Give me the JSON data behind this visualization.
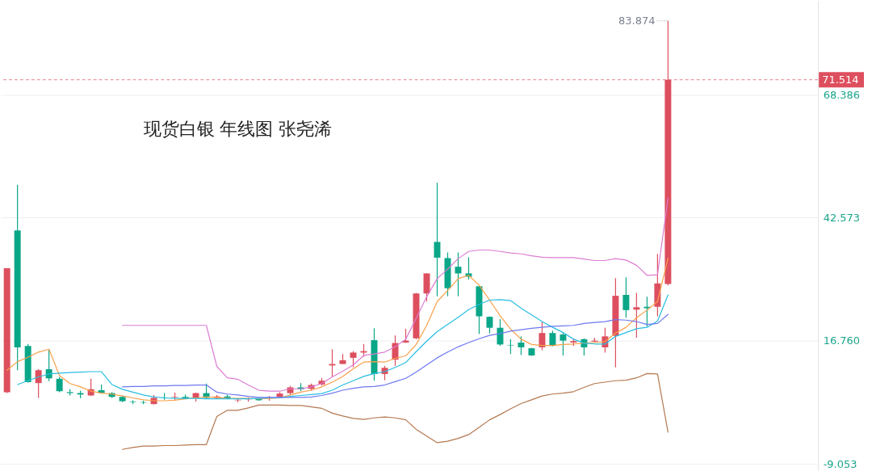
{
  "chart_data": {
    "type": "candlestick",
    "title": "现货白银 年线图 张尧浠",
    "categories": [
      null,
      null,
      null,
      null,
      null,
      null,
      null,
      null,
      null,
      null,
      null,
      null,
      null,
      null,
      null,
      null,
      null,
      null,
      null,
      null,
      null,
      null,
      null,
      null,
      null,
      null,
      null,
      null,
      null,
      null,
      null,
      null,
      null,
      null,
      null,
      null,
      null,
      null,
      null,
      null,
      null,
      null,
      null,
      null,
      null,
      null,
      null,
      null,
      null,
      null,
      null,
      null,
      null,
      null,
      null,
      null,
      null,
      null,
      null,
      null,
      null,
      null,
      null,
      null
    ],
    "ohlc": [
      [
        6.0,
        32.0,
        5.8,
        32.0
      ],
      [
        39.9,
        49.5,
        10.6,
        15.4
      ],
      [
        15.7,
        16.1,
        8.0,
        8.1
      ],
      [
        7.9,
        10.8,
        4.8,
        10.6
      ],
      [
        10.8,
        14.9,
        8.3,
        8.9
      ],
      [
        8.8,
        9.2,
        6.0,
        6.2
      ],
      [
        6.0,
        6.6,
        5.3,
        5.8
      ],
      [
        5.8,
        6.3,
        4.7,
        5.5
      ],
      [
        5.3,
        8.8,
        5.2,
        6.6
      ],
      [
        6.4,
        7.6,
        5.7,
        5.8
      ],
      [
        5.8,
        6.0,
        4.8,
        5.0
      ],
      [
        5.0,
        5.2,
        3.9,
        4.1
      ],
      [
        4.0,
        4.3,
        3.5,
        3.9
      ],
      [
        3.9,
        4.2,
        3.5,
        3.8
      ],
      [
        3.5,
        5.4,
        3.4,
        4.8
      ],
      [
        4.9,
        5.8,
        4.4,
        4.8
      ],
      [
        4.9,
        5.9,
        4.4,
        5.0
      ],
      [
        5.0,
        5.5,
        4.5,
        4.6
      ],
      [
        4.8,
        5.9,
        4.0,
        5.8
      ],
      [
        5.8,
        7.8,
        4.7,
        4.8
      ],
      [
        4.8,
        5.4,
        4.7,
        5.1
      ],
      [
        5.1,
        5.5,
        4.5,
        4.6
      ],
      [
        4.3,
        4.7,
        3.9,
        4.4
      ],
      [
        4.5,
        4.9,
        4.0,
        4.6
      ],
      [
        4.6,
        4.8,
        4.2,
        4.3
      ],
      [
        4.7,
        5.2,
        4.2,
        4.9
      ],
      [
        5.0,
        6.0,
        4.8,
        5.7
      ],
      [
        5.8,
        7.3,
        5.4,
        7.0
      ],
      [
        7.0,
        7.9,
        6.2,
        6.6
      ],
      [
        6.7,
        7.8,
        6.3,
        7.5
      ],
      [
        7.6,
        9.0,
        7.4,
        8.4
      ],
      [
        11.6,
        15.0,
        9.2,
        11.9
      ],
      [
        11.9,
        14.0,
        11.9,
        12.7
      ],
      [
        13.2,
        14.6,
        11.2,
        14.3
      ],
      [
        14.3,
        16.1,
        13.4,
        14.6
      ],
      [
        16.9,
        19.4,
        8.4,
        9.8
      ],
      [
        9.8,
        11.5,
        8.5,
        11.1
      ],
      [
        12.8,
        17.9,
        11.5,
        16.3
      ],
      [
        16.4,
        19.3,
        16.3,
        16.8
      ],
      [
        17.3,
        26.8,
        17.1,
        26.7
      ],
      [
        26.7,
        30.9,
        25.0,
        30.9
      ],
      [
        37.5,
        49.9,
        26.1,
        34.2
      ],
      [
        34.1,
        35.3,
        26.1,
        27.8
      ],
      [
        32.3,
        35.3,
        26.1,
        30.9
      ],
      [
        30.9,
        34.3,
        29.6,
        30.2
      ],
      [
        28.2,
        28.2,
        18.2,
        21.9
      ],
      [
        21.8,
        21.9,
        18.3,
        19.5
      ],
      [
        19.5,
        21.3,
        15.7,
        16.0
      ],
      [
        15.9,
        17.1,
        14.0,
        15.8
      ],
      [
        16.4,
        17.7,
        13.8,
        15.4
      ],
      [
        15.2,
        15.3,
        13.6,
        13.7
      ],
      [
        15.4,
        20.8,
        14.8,
        18.4
      ],
      [
        18.4,
        18.9,
        15.6,
        15.7
      ],
      [
        18.1,
        18.4,
        13.7,
        16.8
      ],
      [
        16.4,
        17.2,
        15.7,
        16.7
      ],
      [
        17.1,
        17.3,
        13.7,
        15.4
      ],
      [
        16.6,
        17.4,
        16.5,
        16.8
      ],
      [
        15.4,
        19.5,
        14.3,
        17.7
      ],
      [
        17.8,
        29.9,
        11.2,
        26.2
      ],
      [
        26.4,
        30.1,
        21.6,
        23.2
      ],
      [
        23.3,
        26.8,
        17.4,
        23.8
      ],
      [
        23.9,
        26.0,
        19.8,
        23.6
      ],
      [
        23.9,
        35.0,
        21.9,
        28.8
      ],
      [
        28.7,
        83.874,
        28.4,
        71.514
      ]
    ],
    "colors": [
      "#dd4f5e",
      "#0aa688",
      "#0aa688",
      "#dd4f5e",
      "#0aa688",
      "#0aa688",
      "#0aa688",
      "#0aa688",
      "#dd4f5e",
      "#0aa688",
      "#0aa688",
      "#0aa688",
      "#0aa688",
      "#0aa688",
      "#dd4f5e",
      "#0aa688",
      "#dd4f5e",
      "#0aa688",
      "#dd4f5e",
      "#0aa688",
      "#dd4f5e",
      "#0aa688",
      "#dd4f5e",
      "#dd4f5e",
      "#0aa688",
      "#dd4f5e",
      "#dd4f5e",
      "#dd4f5e",
      "#0aa688",
      "#dd4f5e",
      "#dd4f5e",
      "#dd4f5e",
      "#dd4f5e",
      "#dd4f5e",
      "#dd4f5e",
      "#0aa688",
      "#dd4f5e",
      "#dd4f5e",
      "#dd4f5e",
      "#dd4f5e",
      "#dd4f5e",
      "#0aa688",
      "#0aa688",
      "#0aa688",
      "#0aa688",
      "#0aa688",
      "#0aa688",
      "#0aa688",
      "#0aa688",
      "#0aa688",
      "#0aa688",
      "#dd4f5e",
      "#0aa688",
      "#0aa688",
      "#dd4f5e",
      "#0aa688",
      "#dd4f5e",
      "#dd4f5e",
      "#dd4f5e",
      "#0aa688",
      "#dd4f5e",
      "#0aa688",
      "#dd4f5e",
      "#dd4f5e"
    ],
    "series": [
      {
        "type": "line",
        "color": "#f9a04a",
        "values": [
          10.6,
          12.4,
          13.3,
          14.4,
          15.0,
          9.5,
          7.8,
          7.1,
          6.2,
          5.8,
          5.6,
          5.2,
          4.8,
          4.4,
          4.2,
          4.2,
          4.3,
          4.6,
          4.8,
          5.0,
          4.9,
          4.7,
          4.7,
          4.7,
          4.6,
          4.7,
          4.8,
          5.4,
          6.0,
          6.4,
          7.1,
          8.1,
          9.3,
          10.9,
          12.3,
          12.4,
          12.3,
          13.1,
          13.6,
          16.0,
          20.0,
          25.0,
          27.3,
          29.8,
          30.5,
          28.4,
          25.3,
          22.0,
          19.2,
          17.1,
          16.0,
          15.8,
          15.8,
          16.0,
          16.1,
          16.3,
          16.4,
          16.6,
          18.4,
          19.6,
          21.6,
          23.2,
          25.0,
          34.1
        ]
      },
      {
        "type": "line",
        "color": "#28bee1",
        "values": [
          null,
          7.6,
          8.4,
          9.2,
          9.8,
          10.0,
          10.1,
          10.2,
          10.3,
          10.3,
          7.6,
          6.6,
          6.0,
          5.4,
          5.0,
          4.8,
          4.7,
          4.7,
          4.7,
          4.6,
          4.6,
          4.6,
          4.6,
          4.6,
          4.7,
          4.8,
          4.8,
          5.1,
          5.3,
          5.5,
          5.7,
          6.4,
          7.5,
          8.4,
          9.3,
          9.9,
          10.3,
          11.2,
          12.2,
          14.5,
          16.7,
          18.7,
          20.2,
          21.7,
          23.3,
          24.4,
          25.3,
          25.4,
          25.2,
          23.6,
          22.2,
          20.8,
          19.6,
          18.5,
          17.1,
          16.3,
          16.1,
          16.1,
          17.7,
          18.5,
          19.3,
          19.6,
          20.9,
          26.4
        ]
      },
      {
        "type": "line",
        "color": "#6e78f0",
        "values": [
          null,
          null,
          null,
          null,
          null,
          null,
          null,
          null,
          null,
          null,
          null,
          7.1,
          7.2,
          7.2,
          7.3,
          7.3,
          7.4,
          7.4,
          7.5,
          7.5,
          6.0,
          5.6,
          5.4,
          5.1,
          4.9,
          4.9,
          4.9,
          4.9,
          4.9,
          5.0,
          5.3,
          5.8,
          6.4,
          6.8,
          7.1,
          7.2,
          7.5,
          8.2,
          8.9,
          10.2,
          11.7,
          13.2,
          14.4,
          15.5,
          16.4,
          17.2,
          17.9,
          18.3,
          18.8,
          19.1,
          19.4,
          19.6,
          19.8,
          19.9,
          20.0,
          20.4,
          20.6,
          20.8,
          21.2,
          21.1,
          20.8,
          20.2,
          20.4,
          22.3
        ]
      },
      {
        "type": "line",
        "color": "#dc7dd2",
        "values": [
          null,
          null,
          null,
          null,
          null,
          null,
          null,
          null,
          null,
          null,
          null,
          20.0,
          20.0,
          20.0,
          20.0,
          20.0,
          20.0,
          20.0,
          20.0,
          20.0,
          11.4,
          9.0,
          8.7,
          7.5,
          6.4,
          6.2,
          6.2,
          6.7,
          6.7,
          7.1,
          7.8,
          9.2,
          10.4,
          11.7,
          13.7,
          14.0,
          14.4,
          15.5,
          17.1,
          21.5,
          26.0,
          29.8,
          31.8,
          34.0,
          35.5,
          35.8,
          35.8,
          35.5,
          35.2,
          35.0,
          34.6,
          34.3,
          34.2,
          34.2,
          34.2,
          33.9,
          33.6,
          33.6,
          34.0,
          33.7,
          32.6,
          30.5,
          30.6,
          46.7
        ]
      },
      {
        "type": "line",
        "color": "#b47850",
        "values": [
          null,
          null,
          null,
          null,
          null,
          null,
          null,
          null,
          null,
          null,
          null,
          -6.0,
          -5.6,
          -5.3,
          -5.3,
          -5.2,
          -5.2,
          -5.1,
          -5.0,
          -5.0,
          0.9,
          2.2,
          2.2,
          2.7,
          3.3,
          3.3,
          3.3,
          3.2,
          3.2,
          2.9,
          2.6,
          1.6,
          1.0,
          0.5,
          0.3,
          0.6,
          0.8,
          0.6,
          0.2,
          -1.8,
          -3.2,
          -4.6,
          -4.3,
          -3.7,
          -2.9,
          -1.4,
          0.2,
          1.3,
          2.5,
          3.6,
          4.4,
          5.2,
          5.6,
          5.8,
          6.1,
          7.0,
          7.8,
          8.1,
          8.4,
          8.5,
          9.0,
          9.9,
          9.8,
          -2.4
        ]
      }
    ],
    "ylim": [
      -10.4,
      88.1
    ],
    "yticks": [
      -9.053,
      {
        "value": 16.76,
        "label": "16.760"
      },
      42.573,
      68.386
    ],
    "grid": "y",
    "tick_labels": "y",
    "ref_lines": [
      {
        "axis": "y",
        "value": 71.514,
        "label": "71.514",
        "color": "#dd4f5e",
        "line_style": "dashed"
      }
    ],
    "annotations": [
      "83.874"
    ]
  }
}
